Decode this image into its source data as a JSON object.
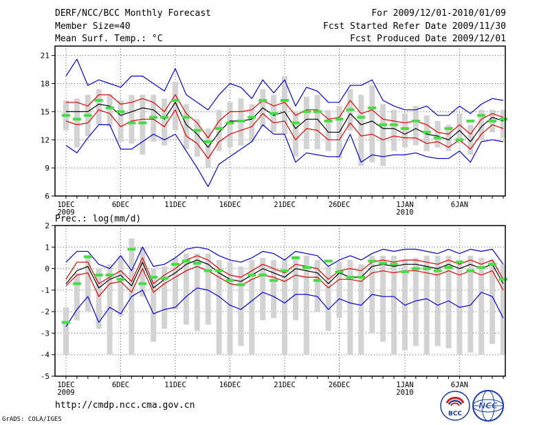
{
  "header": {
    "title": "DERF/NCC/BCC Monthly Forecast",
    "member": "Member Size=40",
    "variable": "Mean Surf. Temp.: °C",
    "period": "For 2009/12/01-2010/01/09",
    "started": "Fcst Started Refer Date 2009/11/30",
    "produced": "Fcst Produced Date 2009/12/01"
  },
  "footer": {
    "url": "http://cmdp.ncc.cma.gov.cn",
    "credit": "GrADS: COLA/IGES",
    "logo1_text": "BCC",
    "logo2_text": "NCC"
  },
  "colors": {
    "max_min": "#0000cc",
    "spread": "#dd0000",
    "mean": "#000000",
    "box": "#d3d3d3",
    "marker": "#44dd44"
  },
  "chart_data": [
    {
      "type": "line",
      "title": "Mean Surf. Temp.: °C",
      "ylim": [
        6,
        22
      ],
      "yticks": [
        6,
        9,
        12,
        15,
        18,
        21
      ],
      "x_labels": [
        {
          "day": 1,
          "lines": [
            "1DEC",
            "2009"
          ]
        },
        {
          "day": 6,
          "lines": [
            "6DEC"
          ]
        },
        {
          "day": 11,
          "lines": [
            "11DEC"
          ]
        },
        {
          "day": 16,
          "lines": [
            "16DEC"
          ]
        },
        {
          "day": 21,
          "lines": [
            "21DEC"
          ]
        },
        {
          "day": 26,
          "lines": [
            "26DEC"
          ]
        },
        {
          "day": 32,
          "lines": [
            "1JAN",
            "2010"
          ]
        },
        {
          "day": 37,
          "lines": [
            "6JAN"
          ]
        }
      ],
      "series": [
        {
          "name": "max",
          "style": "max_min",
          "values": [
            18.8,
            20.6,
            17.8,
            18.4,
            18.0,
            17.6,
            18.8,
            18.8,
            18.0,
            17.2,
            19.6,
            16.8,
            16.0,
            15.2,
            16.8,
            18.0,
            17.6,
            16.4,
            18.4,
            17.0,
            18.4,
            15.6,
            17.6,
            17.2,
            16.0,
            16.0,
            17.8,
            17.8,
            18.4,
            16.2,
            15.6,
            15.2,
            15.2,
            15.6,
            14.6,
            14.6,
            15.6,
            14.8,
            15.8,
            16.4,
            16.2
          ]
        },
        {
          "name": "upper",
          "style": "spread",
          "values": [
            16.0,
            16.0,
            15.6,
            16.8,
            16.8,
            15.8,
            16.0,
            16.4,
            16.0,
            15.0,
            16.8,
            14.8,
            13.8,
            12.2,
            14.0,
            15.0,
            15.0,
            15.2,
            16.2,
            15.6,
            16.0,
            14.6,
            15.2,
            15.2,
            14.2,
            14.4,
            16.2,
            14.8,
            15.2,
            14.2,
            14.0,
            13.8,
            14.0,
            13.6,
            12.8,
            12.6,
            13.6,
            12.6,
            14.2,
            14.8,
            14.4
          ]
        },
        {
          "name": "mean",
          "style": "mean",
          "values": [
            15.0,
            15.0,
            15.0,
            15.8,
            15.6,
            14.6,
            15.0,
            15.4,
            15.2,
            14.2,
            16.0,
            13.6,
            12.6,
            11.2,
            12.8,
            14.0,
            14.0,
            14.2,
            15.4,
            14.6,
            15.0,
            13.2,
            14.2,
            14.2,
            12.8,
            12.8,
            14.8,
            13.6,
            14.0,
            13.2,
            13.2,
            12.6,
            13.2,
            12.6,
            12.4,
            12.0,
            13.0,
            11.8,
            13.4,
            14.4,
            14.0
          ]
        },
        {
          "name": "lower",
          "style": "spread",
          "values": [
            14.0,
            13.6,
            13.8,
            15.2,
            14.8,
            13.4,
            14.0,
            14.2,
            14.2,
            13.4,
            15.2,
            12.4,
            11.6,
            10.0,
            11.8,
            12.6,
            13.0,
            13.4,
            14.8,
            13.8,
            14.0,
            12.0,
            13.2,
            13.0,
            12.0,
            12.0,
            13.8,
            12.4,
            12.6,
            12.0,
            12.4,
            12.2,
            12.2,
            11.6,
            11.8,
            11.2,
            12.0,
            11.0,
            12.6,
            13.6,
            13.2
          ]
        },
        {
          "name": "min",
          "style": "max_min",
          "values": [
            11.4,
            10.6,
            12.2,
            13.6,
            13.6,
            11.0,
            11.0,
            11.8,
            12.6,
            12.0,
            12.6,
            10.8,
            9.0,
            7.0,
            9.4,
            10.2,
            11.0,
            11.8,
            13.6,
            12.6,
            12.6,
            9.6,
            10.6,
            10.4,
            10.2,
            10.2,
            12.6,
            9.6,
            10.4,
            10.2,
            10.4,
            10.4,
            10.6,
            10.2,
            10.0,
            10.0,
            10.8,
            9.6,
            11.8,
            12.0,
            11.8
          ]
        }
      ],
      "boxes": {
        "low": [
          13.0,
          11.2,
          12.4,
          13.6,
          13.4,
          11.8,
          11.6,
          10.4,
          11.8,
          11.4,
          13.0,
          11.0,
          10.2,
          9.0,
          10.8,
          11.2,
          11.4,
          11.8,
          13.4,
          12.8,
          12.6,
          10.2,
          11.0,
          11.0,
          10.8,
          10.0,
          13.0,
          9.2,
          9.6,
          9.2,
          10.8,
          11.2,
          11.4,
          10.8,
          11.2,
          10.8,
          11.6,
          10.4,
          12.0,
          12.8,
          12.2
        ],
        "high": [
          16.2,
          16.4,
          16.8,
          17.4,
          16.8,
          16.2,
          16.8,
          16.8,
          16.8,
          16.4,
          18.2,
          15.8,
          14.2,
          13.2,
          15.2,
          16.0,
          16.4,
          15.8,
          17.4,
          16.8,
          18.8,
          15.0,
          16.6,
          16.8,
          15.2,
          15.6,
          17.4,
          16.8,
          17.8,
          15.8,
          15.2,
          14.8,
          15.6,
          14.6,
          14.0,
          13.6,
          14.8,
          13.6,
          15.2,
          15.2,
          15.2
        ]
      },
      "markers": [
        14.6,
        14.2,
        14.6,
        16.2,
        15.4,
        15.0,
        13.8,
        13.8,
        14.4,
        14.4,
        16.2,
        14.4,
        13.0,
        11.8,
        13.2,
        13.8,
        14.0,
        14.4,
        16.2,
        14.8,
        16.2,
        13.8,
        15.0,
        15.0,
        14.0,
        14.2,
        15.2,
        14.4,
        15.4,
        13.6,
        13.6,
        13.2,
        14.0,
        12.8,
        12.2,
        13.2,
        12.0,
        14.0,
        14.6,
        14.0,
        14.2
      ]
    },
    {
      "type": "line",
      "title": "Prec.: log(mm/d)",
      "ylim": [
        -5,
        2
      ],
      "yticks": [
        -5,
        -4,
        -3,
        -2,
        -1,
        0,
        1,
        2
      ],
      "x_labels": [
        {
          "day": 1,
          "lines": [
            "1DEC",
            "2009"
          ]
        },
        {
          "day": 6,
          "lines": [
            "6DEC"
          ]
        },
        {
          "day": 11,
          "lines": [
            "11DEC"
          ]
        },
        {
          "day": 16,
          "lines": [
            "16DEC"
          ]
        },
        {
          "day": 21,
          "lines": [
            "21DEC"
          ]
        },
        {
          "day": 26,
          "lines": [
            "26DEC"
          ]
        },
        {
          "day": 32,
          "lines": [
            "1JAN",
            "2010"
          ]
        },
        {
          "day": 37,
          "lines": [
            "6JAN"
          ]
        }
      ],
      "series": [
        {
          "name": "max",
          "style": "max_min",
          "values": [
            0.3,
            0.8,
            0.8,
            0.2,
            0.0,
            0.6,
            -0.1,
            1.0,
            0.1,
            0.2,
            0.5,
            0.9,
            1.0,
            0.9,
            0.6,
            0.4,
            0.3,
            0.5,
            0.8,
            0.7,
            0.4,
            0.8,
            0.7,
            0.6,
            0.1,
            0.4,
            0.6,
            0.4,
            0.7,
            0.9,
            0.8,
            0.9,
            0.9,
            0.8,
            0.7,
            0.9,
            0.7,
            0.9,
            0.8,
            0.9,
            0.2
          ]
        },
        {
          "name": "upper",
          "style": "spread",
          "values": [
            -0.5,
            0.3,
            0.3,
            -0.7,
            -0.4,
            -0.1,
            -0.6,
            0.5,
            -0.7,
            -0.3,
            0.0,
            0.4,
            0.6,
            0.4,
            0.0,
            -0.3,
            -0.4,
            -0.1,
            0.2,
            0.0,
            -0.2,
            0.2,
            0.1,
            0.0,
            -0.5,
            -0.1,
            0.0,
            -0.1,
            0.3,
            0.4,
            0.3,
            0.4,
            0.4,
            0.3,
            0.2,
            0.4,
            0.2,
            0.4,
            0.2,
            0.4,
            -0.5
          ]
        },
        {
          "name": "mean",
          "style": "mean",
          "values": [
            -0.7,
            -0.1,
            0.1,
            -0.9,
            -0.5,
            -0.3,
            -0.8,
            0.3,
            -0.9,
            -0.5,
            -0.2,
            0.2,
            0.4,
            0.2,
            -0.2,
            -0.5,
            -0.6,
            -0.3,
            0.0,
            -0.2,
            -0.4,
            0.0,
            -0.1,
            -0.2,
            -0.7,
            -0.2,
            -0.4,
            -0.4,
            0.1,
            0.2,
            0.1,
            0.2,
            0.2,
            0.1,
            0.0,
            0.2,
            0.0,
            0.2,
            0.0,
            0.2,
            -0.7
          ]
        },
        {
          "name": "lower",
          "style": "spread",
          "values": [
            -0.8,
            -0.3,
            -0.2,
            -1.3,
            -0.7,
            -0.6,
            -1.1,
            0.0,
            -1.1,
            -0.7,
            -0.4,
            -0.1,
            0.1,
            -0.1,
            -0.4,
            -0.7,
            -0.8,
            -0.5,
            -0.3,
            -0.4,
            -0.6,
            -0.3,
            -0.4,
            -0.4,
            -0.9,
            -0.5,
            -0.5,
            -0.6,
            -0.2,
            -0.1,
            -0.2,
            -0.1,
            -0.1,
            -0.2,
            -0.3,
            -0.1,
            -0.3,
            -0.1,
            -0.3,
            -0.1,
            -1.0
          ]
        },
        {
          "name": "min",
          "style": "max_min",
          "values": [
            -2.7,
            -1.9,
            -1.3,
            -2.5,
            -1.8,
            -2.1,
            -1.3,
            -1.0,
            -2.1,
            -1.9,
            -1.8,
            -1.3,
            -0.9,
            -1.0,
            -1.3,
            -1.7,
            -1.9,
            -1.5,
            -1.1,
            -1.3,
            -1.6,
            -1.2,
            -1.2,
            -1.3,
            -1.9,
            -1.4,
            -1.6,
            -1.7,
            -1.2,
            -1.3,
            -1.3,
            -1.7,
            -1.5,
            -1.4,
            -1.7,
            -1.5,
            -1.8,
            -1.7,
            -1.1,
            -1.3,
            -2.3
          ]
        }
      ],
      "boxes": {
        "low": [
          -4.0,
          -2.4,
          -2.0,
          -2.8,
          -4.0,
          -2.2,
          -4.0,
          -1.3,
          -3.4,
          -2.8,
          -1.9,
          -2.6,
          -2.9,
          -2.6,
          -4.0,
          -4.0,
          -3.6,
          -4.0,
          -2.4,
          -2.3,
          -4.0,
          -2.4,
          -4.0,
          -2.0,
          -2.9,
          -2.3,
          -4.0,
          -4.0,
          -3.0,
          -3.4,
          -4.0,
          -3.8,
          -3.6,
          -4.0,
          -3.6,
          -3.7,
          -4.0,
          -3.9,
          -4.0,
          -3.5,
          -4.0
        ],
        "high": [
          -1.8,
          -0.2,
          0.5,
          0.0,
          0.2,
          0.6,
          1.4,
          1.0,
          0.0,
          0.1,
          0.5,
          0.7,
          0.7,
          0.7,
          0.4,
          0.3,
          0.1,
          0.4,
          0.5,
          0.4,
          0.4,
          0.6,
          0.6,
          0.4,
          0.1,
          0.3,
          0.4,
          0.2,
          0.6,
          0.6,
          0.6,
          0.4,
          0.5,
          0.6,
          0.6,
          0.6,
          0.4,
          0.6,
          0.5,
          0.4,
          0.2
        ]
      },
      "markers": [
        -2.5,
        -0.7,
        0.55,
        -0.3,
        -0.3,
        -0.5,
        0.9,
        -0.7,
        -0.4,
        -0.45,
        0.2,
        0.35,
        0.25,
        -0.1,
        -0.1,
        -0.55,
        -0.75,
        -0.3,
        -0.3,
        -0.55,
        -0.1,
        0.5,
        0.05,
        -0.55,
        0.35,
        -0.15,
        -0.4,
        -0.4,
        0.35,
        0.25,
        0.2,
        -0.15,
        0.0,
        0.0,
        -0.1,
        0.05,
        0.3,
        -0.1,
        0.05,
        0.2,
        -0.5
      ]
    }
  ]
}
